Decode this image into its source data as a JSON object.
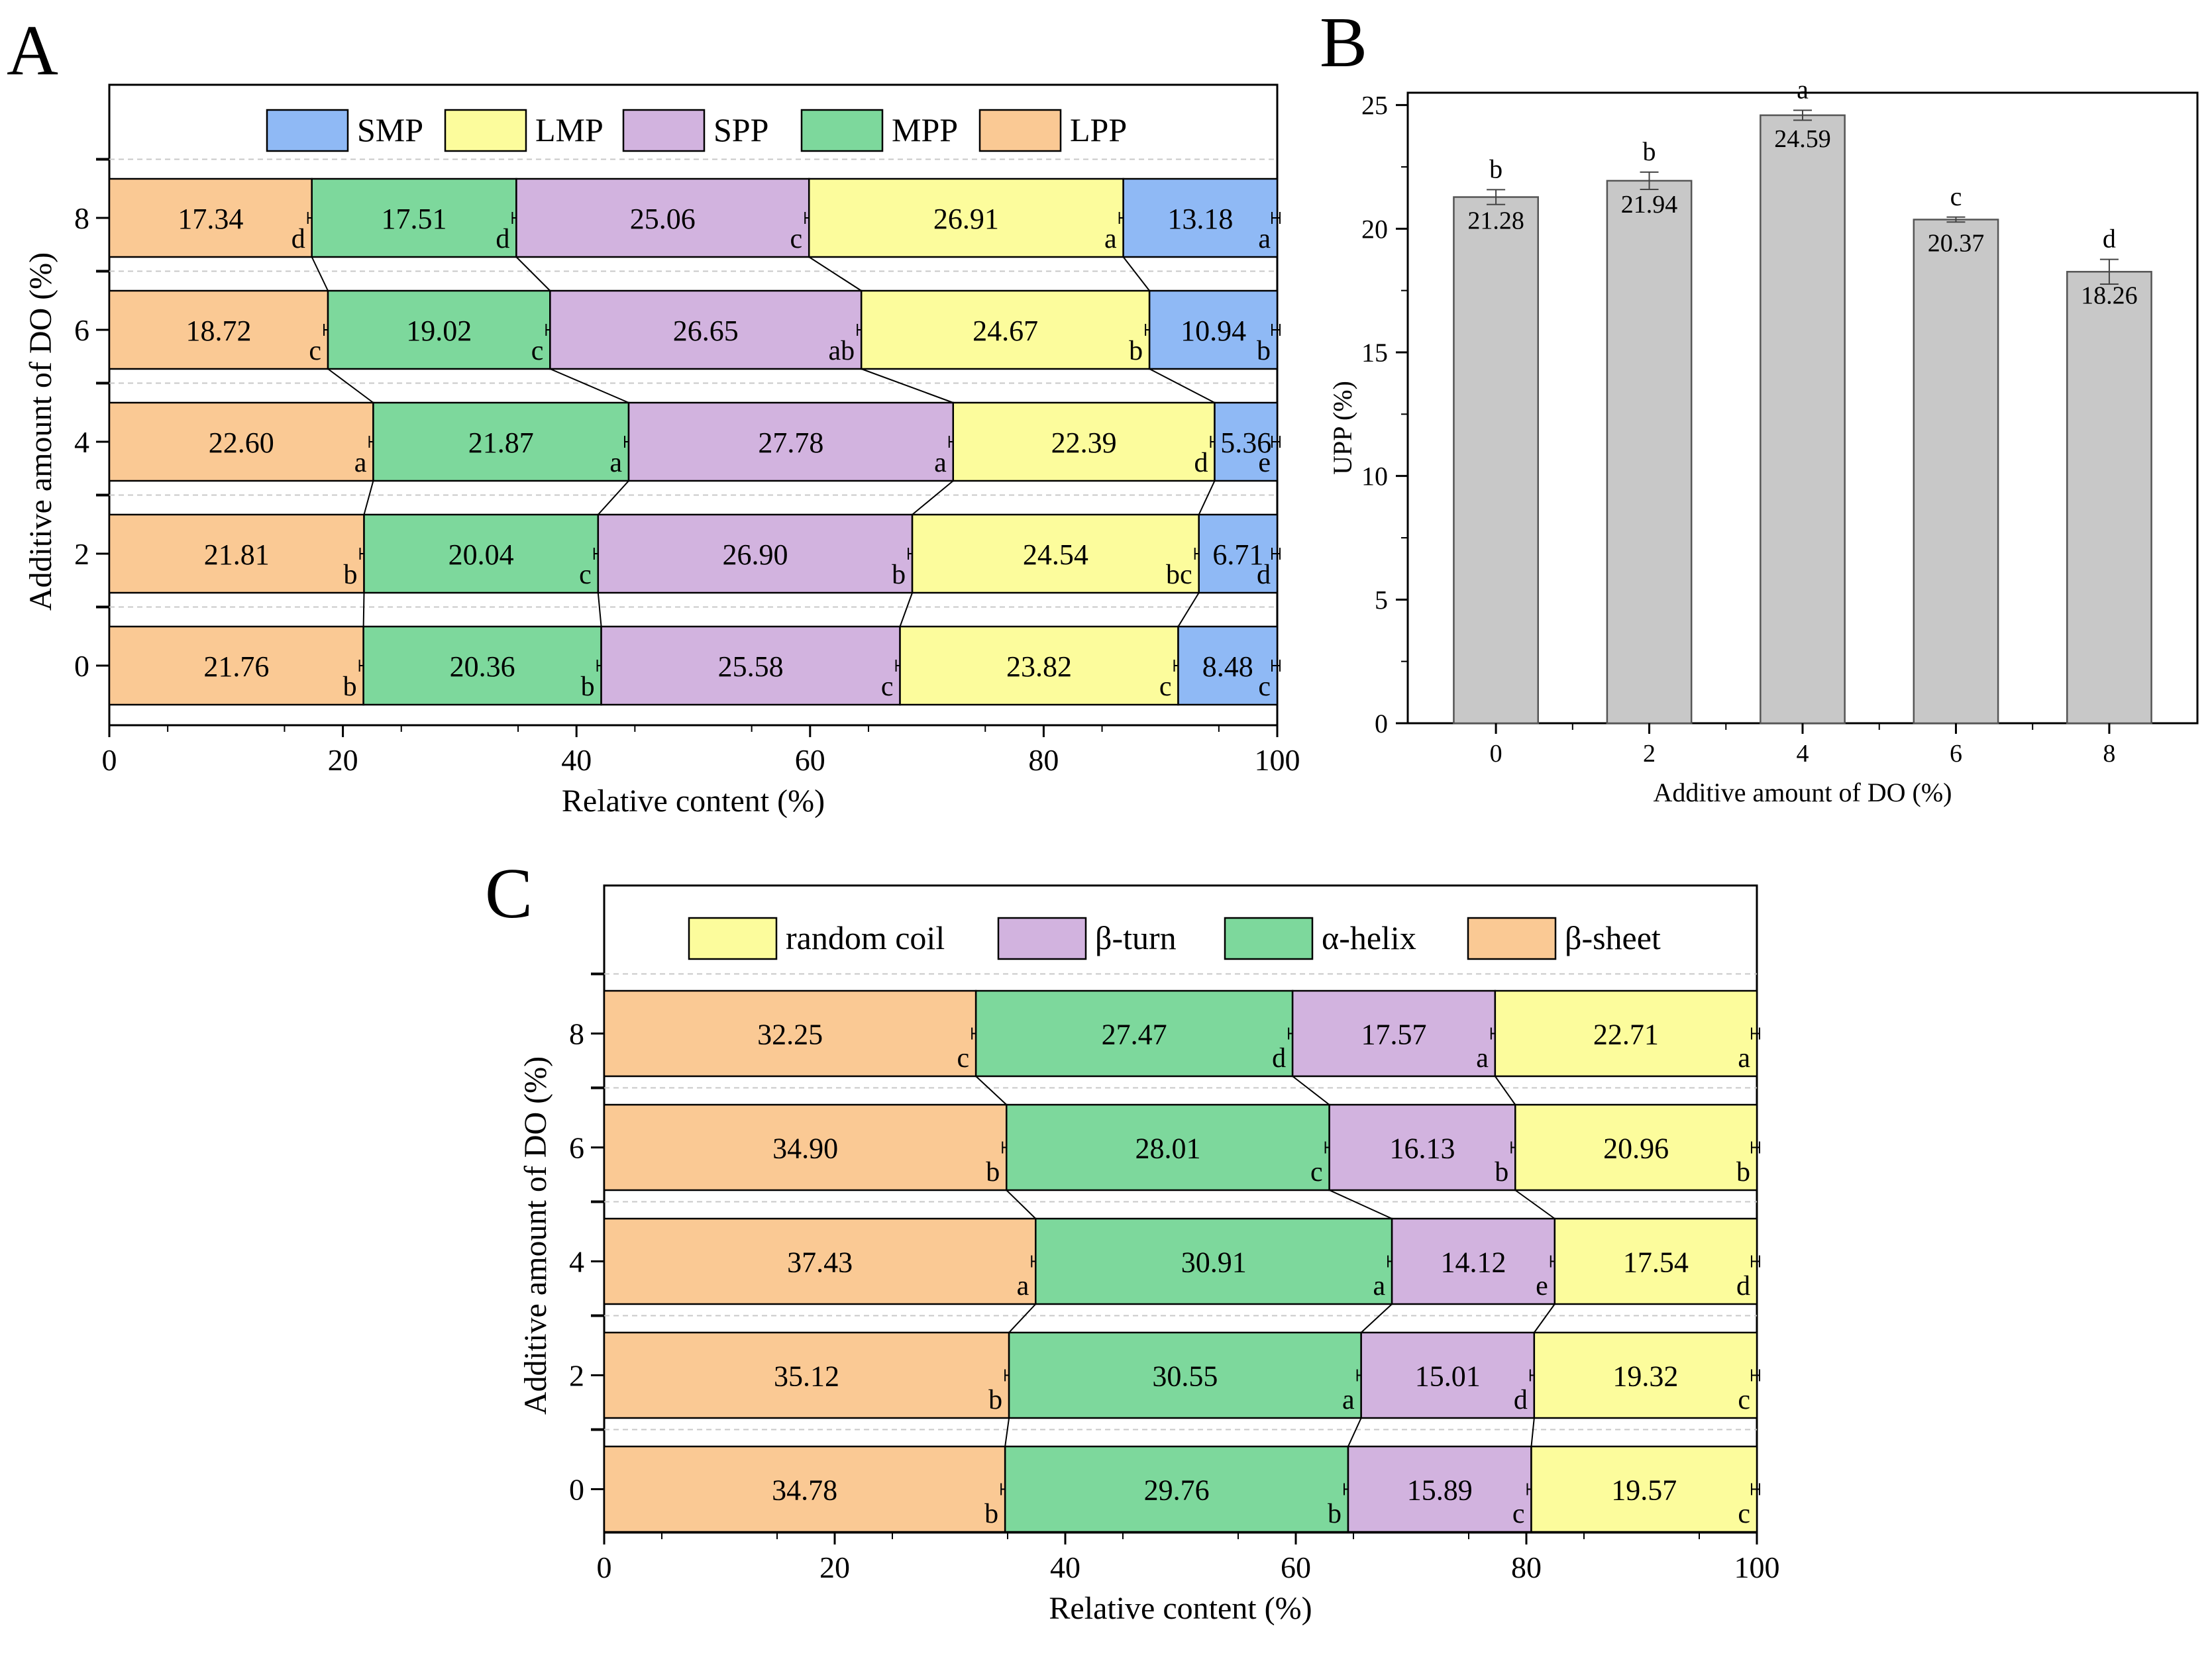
{
  "chart_data": [
    {
      "panel": "A",
      "type": "bar",
      "orientation": "horizontal",
      "stacked": true,
      "categories": [
        "0",
        "2",
        "4",
        "6",
        "8"
      ],
      "xlabel": "Relative content (%)",
      "ylabel": "Additive amount of DO (%)",
      "xlim": [
        0,
        100
      ],
      "xticks": [
        "0",
        "20",
        "40",
        "60",
        "80",
        "100"
      ],
      "legend_position": "top",
      "legend_order": [
        "SMP",
        "LMP",
        "SPP",
        "MPP",
        "LPP"
      ],
      "series": [
        {
          "name": "LPP",
          "color": "#FAC994",
          "values": [
            21.76,
            21.81,
            22.6,
            18.72,
            17.34
          ],
          "labels": [
            "21.76",
            "21.81",
            "22.60",
            "18.72",
            "17.34"
          ],
          "letters": [
            "b",
            "b",
            "a",
            "c",
            "d"
          ]
        },
        {
          "name": "MPP",
          "color": "#7DD89C",
          "values": [
            20.36,
            20.04,
            21.87,
            19.02,
            17.51
          ],
          "labels": [
            "20.36",
            "20.04",
            "21.87",
            "19.02",
            "17.51"
          ],
          "letters": [
            "b",
            "c",
            "a",
            "c",
            "d"
          ]
        },
        {
          "name": "SPP",
          "color": "#D2B3DF",
          "values": [
            25.58,
            26.9,
            27.78,
            26.65,
            25.06
          ],
          "labels": [
            "25.58",
            "26.90",
            "27.78",
            "26.65",
            "25.06"
          ],
          "letters": [
            "c",
            "b",
            "a",
            "ab",
            "c"
          ]
        },
        {
          "name": "LMP",
          "color": "#FCFC9C",
          "values": [
            23.82,
            24.54,
            22.39,
            24.67,
            26.91
          ],
          "labels": [
            "23.82",
            "24.54",
            "22.39",
            "24.67",
            "26.91"
          ],
          "letters": [
            "c",
            "bc",
            "d",
            "b",
            "a"
          ]
        },
        {
          "name": "SMP",
          "color": "#8FB9F5",
          "values": [
            8.48,
            6.71,
            5.36,
            10.94,
            13.18
          ],
          "labels": [
            "8.48",
            "6.71",
            "5.36",
            "10.94",
            "13.18"
          ],
          "letters": [
            "c",
            "d",
            "e",
            "b",
            "a"
          ]
        }
      ]
    },
    {
      "panel": "B",
      "type": "bar",
      "categories": [
        "0",
        "2",
        "4",
        "6",
        "8"
      ],
      "values": [
        21.28,
        21.94,
        24.59,
        20.37,
        18.26
      ],
      "labels": [
        "21.28",
        "21.94",
        "24.59",
        "20.37",
        "18.26"
      ],
      "errors": [
        0.3,
        0.35,
        0.2,
        0.1,
        0.5
      ],
      "letters": [
        "b",
        "b",
        "a",
        "c",
        "d"
      ],
      "xlabel": "Additive amount of DO (%)",
      "ylabel": "UPP (%)",
      "ylim": [
        0,
        25.5
      ],
      "yticks": [
        "0",
        "5",
        "10",
        "15",
        "20",
        "25"
      ],
      "color": "#C8C8C8"
    },
    {
      "panel": "C",
      "type": "bar",
      "orientation": "horizontal",
      "stacked": true,
      "categories": [
        "0",
        "2",
        "4",
        "6",
        "8"
      ],
      "xlabel": "Relative content (%)",
      "ylabel": "Additive amount of DO (%)",
      "xlim": [
        0,
        100
      ],
      "xticks": [
        "0",
        "20",
        "40",
        "60",
        "80",
        "100"
      ],
      "legend_position": "top",
      "legend_order": [
        "random coil",
        "β-turn",
        "α-helix",
        "β-sheet"
      ],
      "series": [
        {
          "name": "β-sheet",
          "color": "#FAC994",
          "values": [
            34.78,
            35.12,
            37.43,
            34.9,
            32.25
          ],
          "labels": [
            "34.78",
            "35.12",
            "37.43",
            "34.90",
            "32.25"
          ],
          "letters": [
            "b",
            "b",
            "a",
            "b",
            "c"
          ]
        },
        {
          "name": "α-helix",
          "color": "#7DD89C",
          "values": [
            29.76,
            30.55,
            30.91,
            28.01,
            27.47
          ],
          "labels": [
            "29.76",
            "30.55",
            "30.91",
            "28.01",
            "27.47"
          ],
          "letters": [
            "b",
            "a",
            "a",
            "c",
            "d"
          ]
        },
        {
          "name": "β-turn",
          "color": "#D2B3DF",
          "values": [
            15.89,
            15.01,
            14.12,
            16.13,
            17.57
          ],
          "labels": [
            "15.89",
            "15.01",
            "14.12",
            "16.13",
            "17.57"
          ],
          "letters": [
            "c",
            "d",
            "e",
            "b",
            "a"
          ]
        },
        {
          "name": "random coil",
          "color": "#FCFC9C",
          "values": [
            19.57,
            19.32,
            17.54,
            20.96,
            22.71
          ],
          "labels": [
            "19.57",
            "19.32",
            "17.54",
            "20.96",
            "22.71"
          ],
          "letters": [
            "c",
            "c",
            "d",
            "b",
            "a"
          ]
        }
      ]
    }
  ],
  "panel_labels": [
    "A",
    "B",
    "C"
  ]
}
